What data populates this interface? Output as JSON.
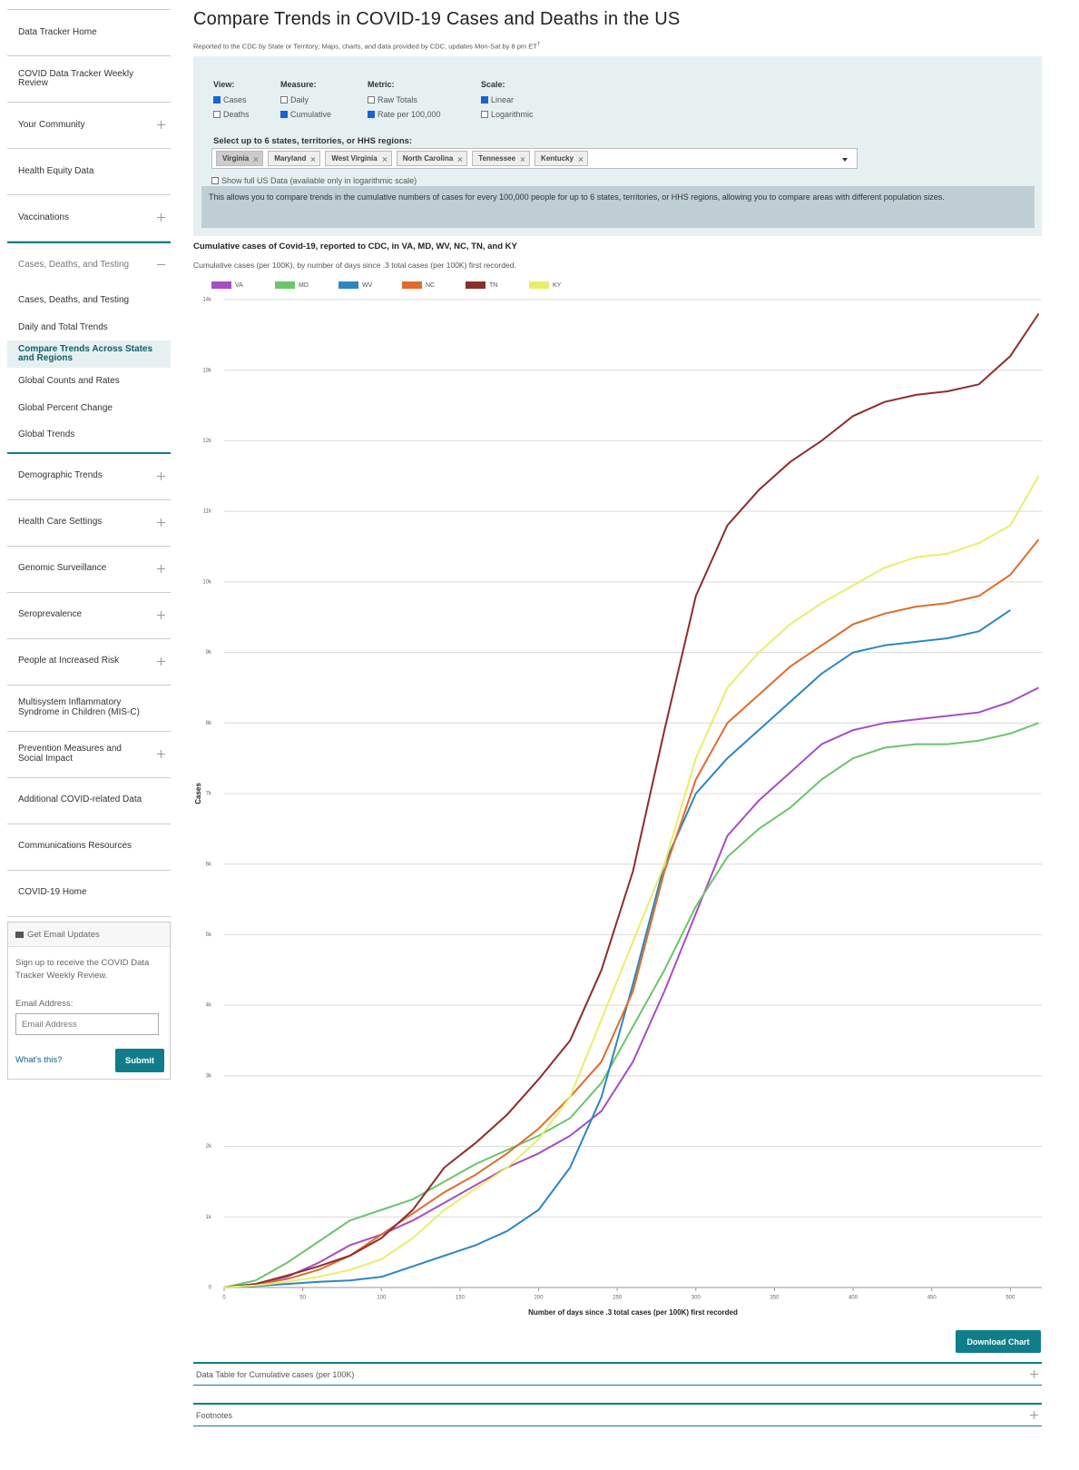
{
  "sidebar": {
    "nav": [
      {
        "label": "Data Tracker Home"
      },
      {
        "label": "COVID Data Tracker Weekly Review"
      },
      {
        "label": "Your Community",
        "expandable": true
      },
      {
        "label": "Health Equity Data"
      },
      {
        "label": "Vaccinations",
        "expandable": true
      },
      {
        "label": "Cases, Deaths, and Testing",
        "expanded": true,
        "children": [
          {
            "label": "Cases, Deaths, and Testing"
          },
          {
            "label": "Daily and Total Trends"
          },
          {
            "label": "Compare Trends Across States and Regions",
            "active": true
          },
          {
            "label": "Global Counts and Rates"
          },
          {
            "label": "Global Percent Change"
          },
          {
            "label": "Global Trends"
          }
        ]
      },
      {
        "label": "Demographic Trends",
        "expandable": true
      },
      {
        "label": "Health Care Settings",
        "expandable": true
      },
      {
        "label": "Genomic Surveillance",
        "expandable": true
      },
      {
        "label": "Seroprevalence",
        "expandable": true
      },
      {
        "label": "People at Increased Risk",
        "expandable": true
      },
      {
        "label": "Multisystem Inflammatory Syndrome in Children (MIS-C)"
      },
      {
        "label": "Prevention Measures and Social Impact",
        "expandable": true
      },
      {
        "label": "Additional COVID-related Data"
      },
      {
        "label": "Communications Resources"
      },
      {
        "label": "COVID-19 Home"
      }
    ],
    "email_box": {
      "title": "Get Email Updates",
      "text": "Sign up to receive the COVID Data Tracker Weekly Review.",
      "field_label": "Email Address:",
      "placeholder": "Email Address",
      "help_link": "What's this?",
      "button": "Submit"
    }
  },
  "header": {
    "title": "Compare Trends in COVID-19 Cases and Deaths in the US",
    "subtitle": "Reported to the CDC by State or Territory; Maps, charts, and data provided by CDC, updates Mon-Sat by 8 pm ET",
    "subtitle_mark": "†"
  },
  "controls": {
    "groups": [
      {
        "label": "View:",
        "options": [
          {
            "label": "Cases",
            "checked": true
          },
          {
            "label": "Deaths",
            "checked": false
          }
        ]
      },
      {
        "label": "Measure:",
        "options": [
          {
            "label": "Daily",
            "checked": false
          },
          {
            "label": "Cumulative",
            "checked": true
          }
        ]
      },
      {
        "label": "Metric:",
        "options": [
          {
            "label": "Raw Totals",
            "checked": false
          },
          {
            "label": "Rate per 100,000",
            "checked": true
          }
        ]
      },
      {
        "label": "Scale:",
        "options": [
          {
            "label": "Linear",
            "checked": true
          },
          {
            "label": "Logarithmic",
            "checked": false
          }
        ]
      }
    ],
    "select_label": "Select up to 6 states, territories, or HHS regions:",
    "selected": [
      "Virginia",
      "Maryland",
      "West Virginia",
      "North Carolina",
      "Tennessee",
      "Kentucky"
    ],
    "full_us": {
      "label": "Show full US Data (available only in logarithmic scale)",
      "checked": false
    },
    "info": "This allows you to compare trends in the cumulative numbers of cases for every 100,000 people for up to 6 states, territories, or HHS regions, allowing you to compare areas with different population sizes."
  },
  "chart_data": {
    "type": "line",
    "title": "Cumulative cases of Covid-19, reported to CDC, in VA, MD, WV, NC, TN, and KY",
    "subtitle": "Cumulative cases (per 100K), by number of days since .3 total cases (per 100K) first recorded.",
    "x_label": "Number of days since .3 total cases (per 100K) first recorded",
    "y_label": "Cases",
    "x": [
      0,
      20,
      40,
      60,
      80,
      100,
      120,
      140,
      160,
      180,
      200,
      220,
      240,
      260,
      280,
      300,
      320,
      340,
      360,
      380,
      400,
      420,
      440,
      460,
      480,
      500,
      518
    ],
    "series": [
      {
        "name": "VA",
        "color": "#a64ec3",
        "values": [
          0,
          50,
          150,
          350,
          600,
          750,
          950,
          1200,
          1450,
          1700,
          1900,
          2150,
          2500,
          3200,
          4200,
          5300,
          6400,
          6900,
          7300,
          7700,
          7900,
          8000,
          8050,
          8100,
          8150,
          8300,
          8500
        ]
      },
      {
        "name": "MD",
        "color": "#6cc46c",
        "values": [
          0,
          100,
          350,
          650,
          950,
          1100,
          1250,
          1500,
          1750,
          1950,
          2150,
          2400,
          2900,
          3700,
          4500,
          5400,
          6100,
          6500,
          6800,
          7200,
          7500,
          7650,
          7700,
          7700,
          7750,
          7850,
          8000
        ]
      },
      {
        "name": "WV",
        "color": "#2e86c1",
        "values": [
          0,
          20,
          50,
          80,
          100,
          150,
          300,
          450,
          600,
          800,
          1100,
          1700,
          2700,
          4300,
          6000,
          7000,
          7500,
          7900,
          8300,
          8700,
          9000,
          9100,
          9150,
          9200,
          9300,
          9600,
          null
        ]
      },
      {
        "name": "NC",
        "color": "#e06b2b",
        "values": [
          0,
          40,
          120,
          250,
          450,
          750,
          1050,
          1350,
          1600,
          1900,
          2250,
          2700,
          3200,
          4200,
          5900,
          7200,
          8000,
          8400,
          8800,
          9100,
          9400,
          9550,
          9650,
          9700,
          9800,
          10100,
          10600
        ]
      },
      {
        "name": "TN",
        "color": "#8b2e2e",
        "values": [
          0,
          50,
          170,
          300,
          450,
          700,
          1100,
          1700,
          2050,
          2450,
          2950,
          3500,
          4500,
          5900,
          7900,
          9800,
          10800,
          11300,
          11700,
          12000,
          12350,
          12550,
          12650,
          12700,
          12800,
          13200,
          13800
        ]
      },
      {
        "name": "KY",
        "color": "#e8ee6a",
        "values": [
          0,
          30,
          80,
          150,
          250,
          400,
          700,
          1100,
          1400,
          1700,
          2100,
          2700,
          3800,
          4900,
          6000,
          7500,
          8500,
          9000,
          9400,
          9700,
          9950,
          10200,
          10350,
          10400,
          10550,
          10800,
          11500
        ]
      }
    ],
    "xlim": [
      0,
      520
    ],
    "xticks": [
      0,
      50,
      100,
      150,
      200,
      250,
      300,
      350,
      400,
      450,
      500
    ],
    "ylim": [
      0,
      14000
    ],
    "yticks": [
      0,
      {
        "value": 1000,
        "label": "1k"
      },
      {
        "value": 2000,
        "label": "2k"
      },
      {
        "value": 3000,
        "label": "3k"
      },
      {
        "value": 4000,
        "label": "4k"
      },
      {
        "value": 5000,
        "label": "5k"
      },
      {
        "value": 6000,
        "label": "6k"
      },
      {
        "value": 7000,
        "label": "7k"
      },
      {
        "value": 8000,
        "label": "8k"
      },
      {
        "value": 9000,
        "label": "9k"
      },
      {
        "value": 10000,
        "label": "10k"
      },
      {
        "value": 11000,
        "label": "11k"
      },
      {
        "value": 12000,
        "label": "12k"
      },
      {
        "value": 13000,
        "label": "13k"
      },
      {
        "value": 14000,
        "label": "14k"
      }
    ],
    "grid": true,
    "legend": "top-left"
  },
  "download_button": "Download Chart",
  "sections": [
    "Data Table for Cumulative cases (per 100K)",
    "Footnotes"
  ]
}
